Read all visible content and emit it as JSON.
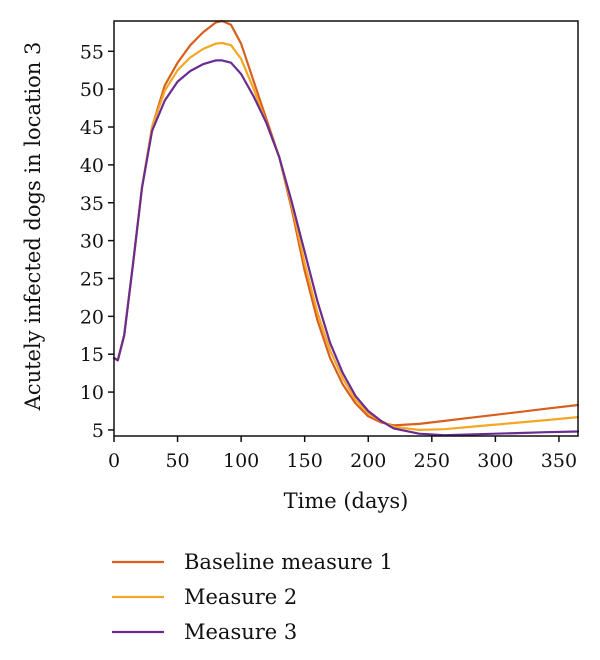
{
  "chart_data": {
    "type": "line",
    "xlabel": "Time (days)",
    "ylabel": "Acutely infected dogs in location 3",
    "xlim": [
      0,
      365
    ],
    "ylim": [
      4.2,
      59
    ],
    "xticks": [
      "0",
      "50",
      "100",
      "150",
      "200",
      "250",
      "300",
      "350"
    ],
    "yticks": [
      "5",
      "10",
      "15",
      "20",
      "25",
      "30",
      "35",
      "40",
      "45",
      "50",
      "55"
    ],
    "grid": false,
    "legend_position": "bottom",
    "series": [
      {
        "name": "Baseline measure 1",
        "color": "#d95f1e",
        "points": [
          [
            0,
            14.5
          ],
          [
            3,
            14.2
          ],
          [
            8,
            17.5
          ],
          [
            15,
            27
          ],
          [
            22,
            37
          ],
          [
            30,
            45
          ],
          [
            40,
            50.5
          ],
          [
            50,
            53.5
          ],
          [
            60,
            55.8
          ],
          [
            70,
            57.5
          ],
          [
            80,
            58.8
          ],
          [
            85,
            59
          ],
          [
            92,
            58.5
          ],
          [
            100,
            56
          ],
          [
            110,
            51
          ],
          [
            120,
            46
          ],
          [
            130,
            41
          ],
          [
            140,
            34
          ],
          [
            150,
            26
          ],
          [
            160,
            19.5
          ],
          [
            170,
            14.5
          ],
          [
            180,
            11
          ],
          [
            190,
            8.5
          ],
          [
            200,
            6.8
          ],
          [
            210,
            6
          ],
          [
            220,
            5.6
          ],
          [
            240,
            5.8
          ],
          [
            260,
            6.2
          ],
          [
            280,
            6.6
          ],
          [
            300,
            7
          ],
          [
            320,
            7.4
          ],
          [
            340,
            7.8
          ],
          [
            365,
            8.3
          ]
        ]
      },
      {
        "name": "Measure 2",
        "color": "#f5a623",
        "points": [
          [
            0,
            14.5
          ],
          [
            3,
            14.2
          ],
          [
            8,
            17.5
          ],
          [
            15,
            27
          ],
          [
            22,
            37
          ],
          [
            30,
            45
          ],
          [
            40,
            49.8
          ],
          [
            50,
            52.5
          ],
          [
            60,
            54.2
          ],
          [
            70,
            55.3
          ],
          [
            80,
            56
          ],
          [
            85,
            56.1
          ],
          [
            92,
            55.8
          ],
          [
            100,
            54
          ],
          [
            110,
            50
          ],
          [
            120,
            45.5
          ],
          [
            130,
            41
          ],
          [
            140,
            34.5
          ],
          [
            150,
            27
          ],
          [
            160,
            20.5
          ],
          [
            170,
            15.5
          ],
          [
            180,
            11.8
          ],
          [
            190,
            9
          ],
          [
            200,
            7.2
          ],
          [
            210,
            6.2
          ],
          [
            220,
            5.4
          ],
          [
            240,
            5
          ],
          [
            260,
            5.1
          ],
          [
            280,
            5.4
          ],
          [
            300,
            5.7
          ],
          [
            320,
            6
          ],
          [
            340,
            6.3
          ],
          [
            365,
            6.7
          ]
        ]
      },
      {
        "name": "Measure 3",
        "color": "#6a2c91",
        "points": [
          [
            0,
            14.5
          ],
          [
            3,
            14.2
          ],
          [
            8,
            17.5
          ],
          [
            15,
            27
          ],
          [
            22,
            37
          ],
          [
            30,
            44.5
          ],
          [
            40,
            48.5
          ],
          [
            50,
            51
          ],
          [
            60,
            52.4
          ],
          [
            70,
            53.3
          ],
          [
            80,
            53.8
          ],
          [
            85,
            53.8
          ],
          [
            92,
            53.5
          ],
          [
            100,
            52
          ],
          [
            110,
            49
          ],
          [
            120,
            45.5
          ],
          [
            130,
            41
          ],
          [
            140,
            35
          ],
          [
            150,
            28.5
          ],
          [
            160,
            22
          ],
          [
            170,
            16.5
          ],
          [
            180,
            12.5
          ],
          [
            190,
            9.5
          ],
          [
            200,
            7.5
          ],
          [
            210,
            6.2
          ],
          [
            220,
            5.2
          ],
          [
            240,
            4.5
          ],
          [
            260,
            4.3
          ],
          [
            280,
            4.4
          ],
          [
            300,
            4.5
          ],
          [
            320,
            4.6
          ],
          [
            340,
            4.7
          ],
          [
            365,
            4.8
          ]
        ]
      }
    ]
  }
}
